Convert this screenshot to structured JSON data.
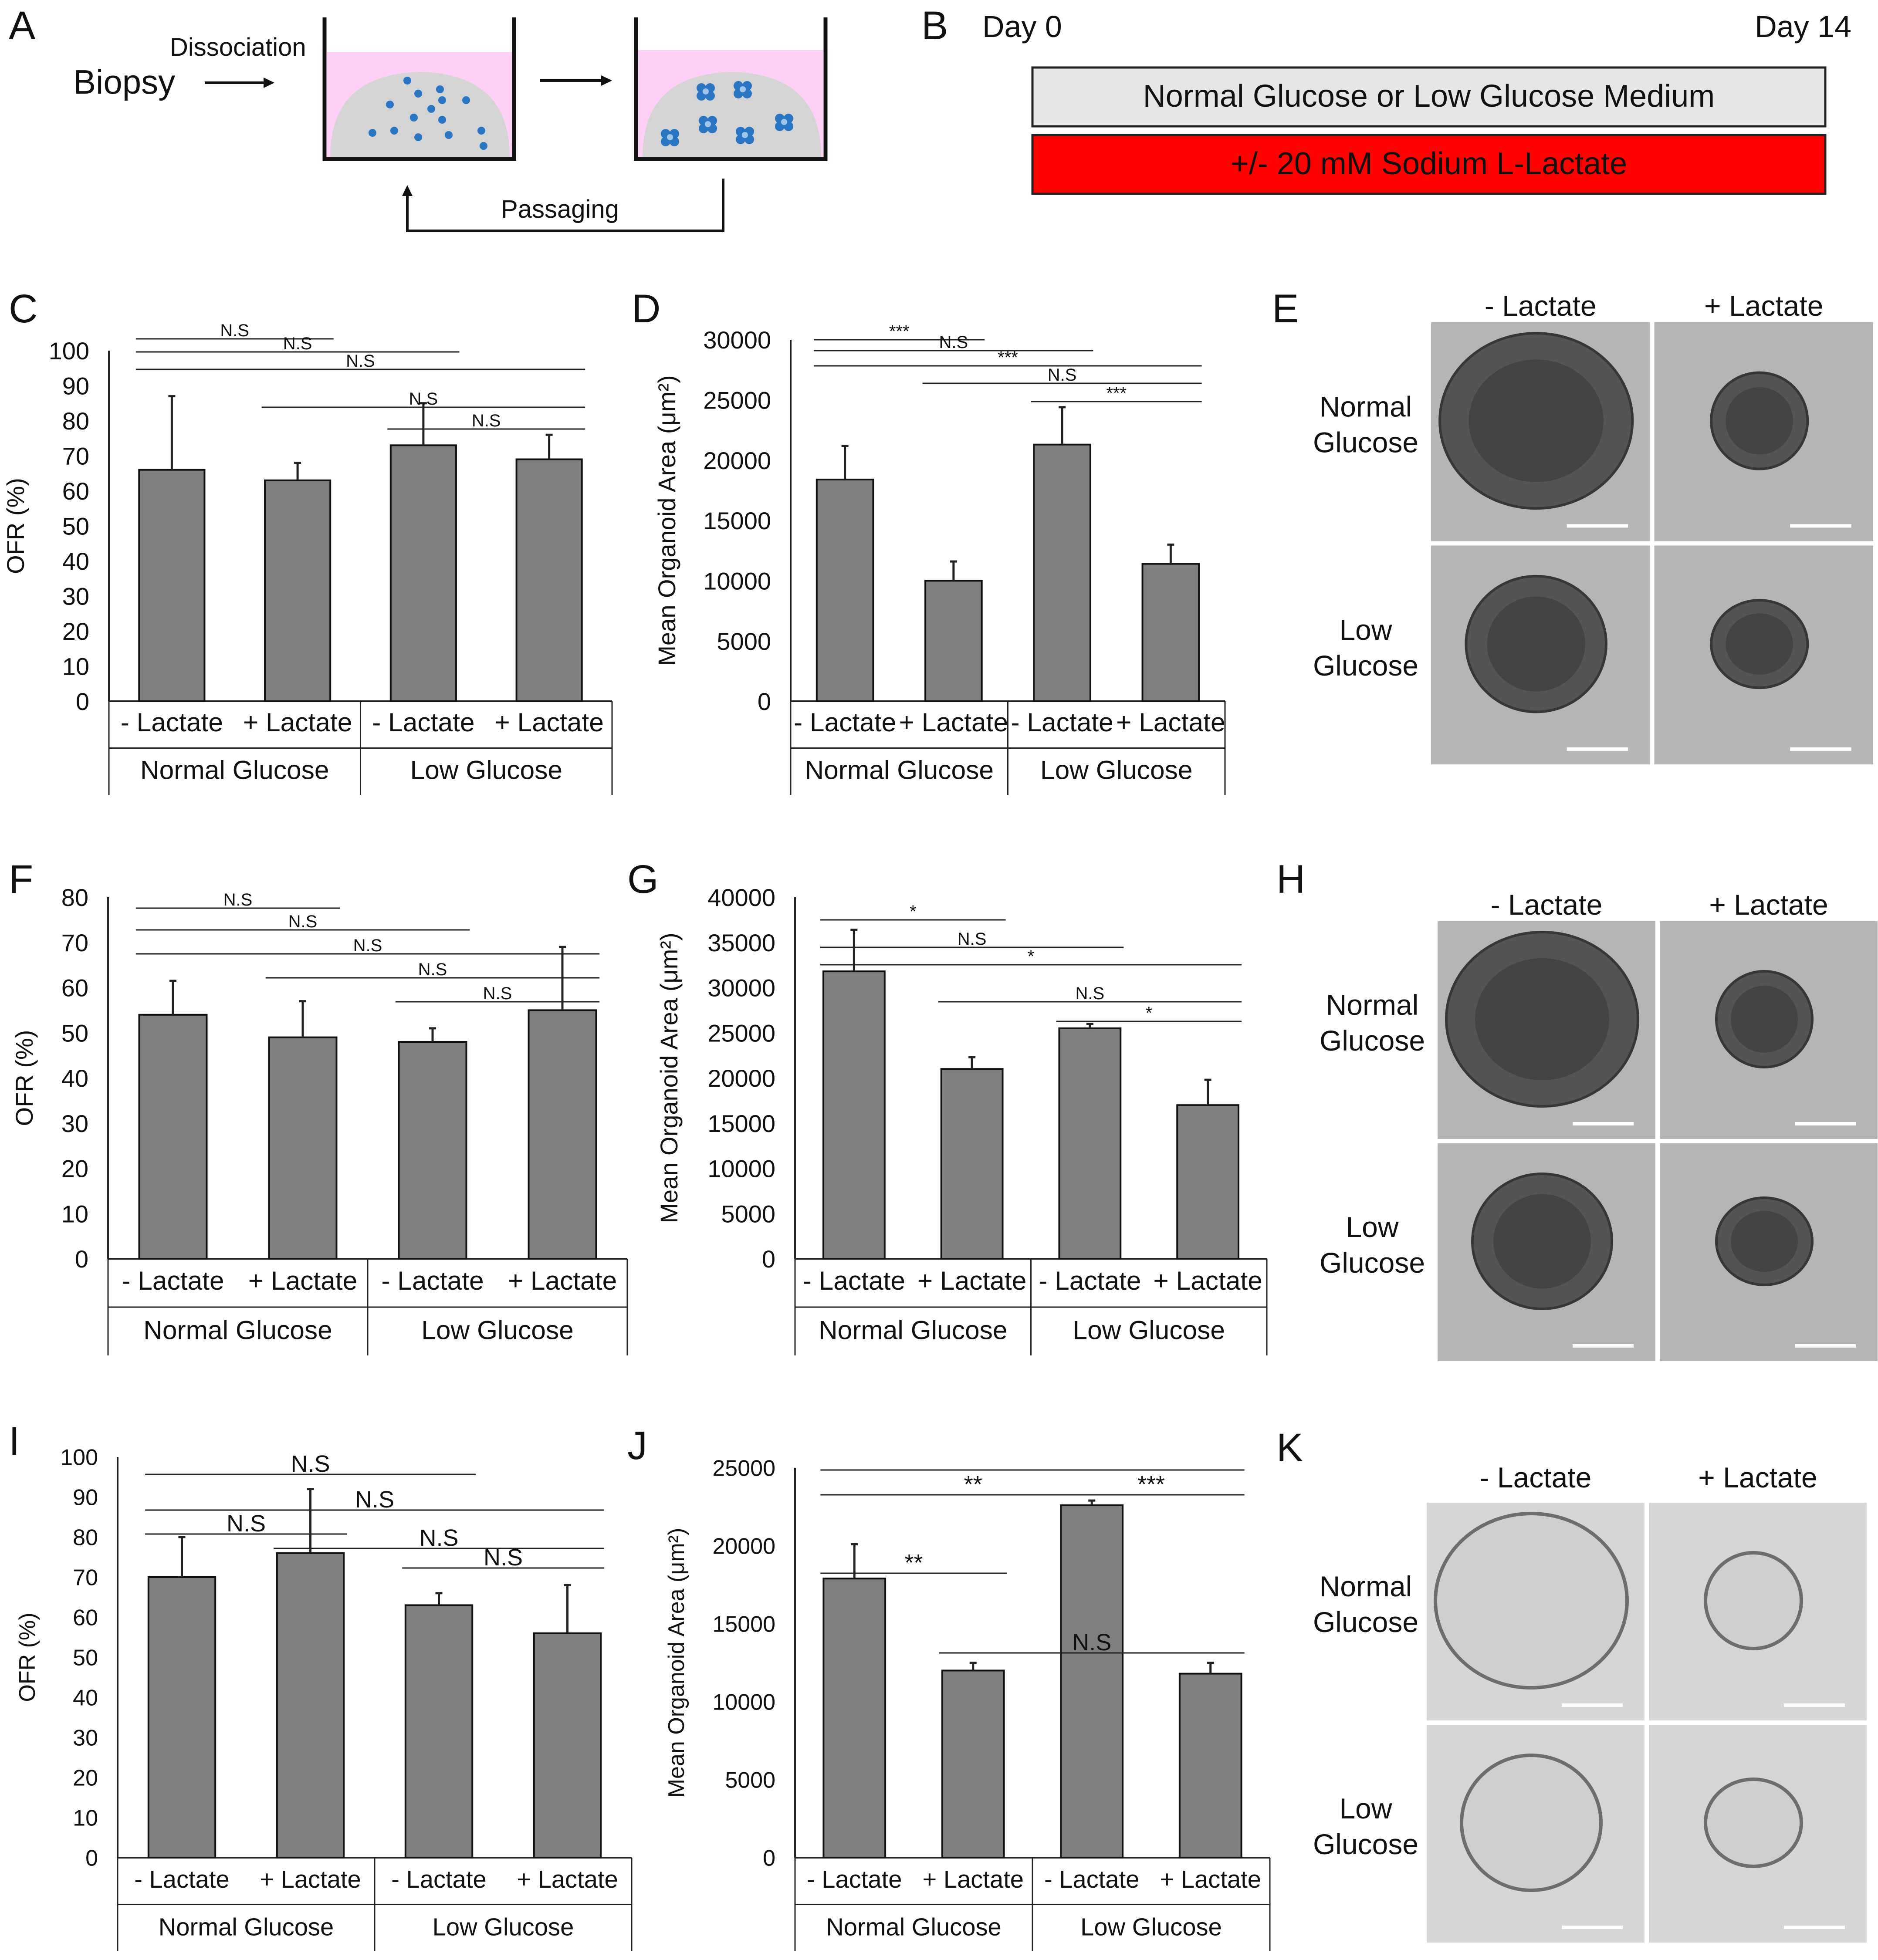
{
  "panel_letters": [
    "A",
    "B",
    "C",
    "D",
    "E",
    "F",
    "G",
    "H",
    "I",
    "J",
    "K"
  ],
  "panel_a": {
    "biopsy": "Biopsy",
    "dissociation": "Dissociation",
    "passaging": "Passaging"
  },
  "panel_b": {
    "day_start": "Day 0",
    "day_end": "Day 14",
    "medium_label": "Normal Glucose or Low Glucose Medium",
    "lactate_label": "+/- 20 mM Sodium L-Lactate",
    "colors": {
      "medium": "#e6e6e6",
      "lactate": "#ff0000"
    }
  },
  "images": {
    "col_labels": [
      "- Lactate",
      "+ Lactate"
    ],
    "row_normal": [
      "Normal",
      "Glucose"
    ],
    "row_low": [
      "Low",
      "Glucose"
    ]
  },
  "colors": {
    "bar": "#7f7f7f",
    "bar_stroke": "#111111"
  },
  "chart_data": [
    {
      "panel": "C",
      "type": "bar",
      "xlabel": "",
      "ylabel": "OFR (%)",
      "ylim": [
        0,
        100
      ],
      "ytick_step": 10,
      "categories": [
        "- Lactate",
        "+ Lactate",
        "- Lactate",
        "+ Lactate"
      ],
      "groups": [
        "Normal Glucose",
        "Low Glucose"
      ],
      "values": [
        66,
        63,
        73,
        69
      ],
      "errors": [
        21,
        5,
        12,
        7
      ],
      "brackets": [
        {
          "from": 0,
          "to": 1,
          "label": "N.S"
        },
        {
          "from": 0,
          "to": 2,
          "label": "N.S"
        },
        {
          "from": 0,
          "to": 3,
          "label": "N.S"
        },
        {
          "from": 1,
          "to": 3,
          "label": "N.S"
        },
        {
          "from": 2,
          "to": 3,
          "label": "N.S"
        }
      ]
    },
    {
      "panel": "D",
      "type": "bar",
      "xlabel": "",
      "ylabel": "Mean Organoid Area (μm²)",
      "ylim": [
        0,
        30000
      ],
      "ytick_step": 5000,
      "categories": [
        "- Lactate",
        "+ Lactate",
        "- Lactate",
        "+ Lactate"
      ],
      "groups": [
        "Normal Glucose",
        "Low Glucose"
      ],
      "values": [
        18400,
        10000,
        21300,
        11400
      ],
      "errors": [
        2800,
        1600,
        3100,
        1600
      ],
      "brackets": [
        {
          "from": 0,
          "to": 1,
          "label": "***"
        },
        {
          "from": 0,
          "to": 2,
          "label": "N.S"
        },
        {
          "from": 0,
          "to": 3,
          "label": "***"
        },
        {
          "from": 1,
          "to": 3,
          "label": "N.S"
        },
        {
          "from": 2,
          "to": 3,
          "label": "***"
        }
      ]
    },
    {
      "panel": "F",
      "type": "bar",
      "xlabel": "",
      "ylabel": "OFR (%)",
      "ylim": [
        0,
        80
      ],
      "ytick_step": 10,
      "categories": [
        "- Lactate",
        "+ Lactate",
        "- Lactate",
        "+ Lactate"
      ],
      "groups": [
        "Normal Glucose",
        "Low Glucose"
      ],
      "values": [
        54,
        49,
        48,
        55
      ],
      "errors": [
        7.5,
        8,
        3,
        14
      ],
      "brackets": [
        {
          "from": 0,
          "to": 1,
          "label": "N.S"
        },
        {
          "from": 0,
          "to": 2,
          "label": "N.S"
        },
        {
          "from": 0,
          "to": 3,
          "label": "N.S"
        },
        {
          "from": 1,
          "to": 3,
          "label": "N.S"
        },
        {
          "from": 2,
          "to": 3,
          "label": "N.S"
        }
      ]
    },
    {
      "panel": "G",
      "type": "bar",
      "xlabel": "",
      "ylabel": "Mean Organoid Area (μm²)",
      "ylim": [
        0,
        40000
      ],
      "ytick_step": 5000,
      "categories": [
        "- Lactate",
        "+ Lactate",
        "- Lactate",
        "+ Lactate"
      ],
      "groups": [
        "Normal Glucose",
        "Low Glucose"
      ],
      "values": [
        31800,
        21000,
        25500,
        17000
      ],
      "errors": [
        4600,
        1300,
        500,
        2800
      ],
      "brackets": [
        {
          "from": 0,
          "to": 1,
          "label": "*"
        },
        {
          "from": 0,
          "to": 2,
          "label": "N.S"
        },
        {
          "from": 0,
          "to": 3,
          "label": "*"
        },
        {
          "from": 1,
          "to": 3,
          "label": "N.S"
        },
        {
          "from": 2,
          "to": 3,
          "label": "*"
        }
      ]
    },
    {
      "panel": "I",
      "type": "bar",
      "xlabel": "",
      "ylabel": "OFR (%)",
      "ylim": [
        0,
        100
      ],
      "ytick_step": 10,
      "categories": [
        "- Lactate",
        "+ Lactate",
        "- Lactate",
        "+ Lactate"
      ],
      "groups": [
        "Normal Glucose",
        "Low Glucose"
      ],
      "values": [
        70,
        76,
        63,
        56
      ],
      "errors": [
        10,
        16,
        3,
        12
      ],
      "brackets": [
        {
          "from": 0,
          "to": 2,
          "label": "N.S"
        },
        {
          "from": 0,
          "to": 3,
          "label": "N.S"
        },
        {
          "from": 0,
          "to": 1,
          "label": "N.S"
        },
        {
          "from": 1,
          "to": 3,
          "label": "N.S"
        },
        {
          "from": 2,
          "to": 3,
          "label": "N.S"
        }
      ]
    },
    {
      "panel": "J",
      "type": "bar",
      "xlabel": "",
      "ylabel": "Mean Organoid Area (μm²)",
      "ylim": [
        0,
        25000
      ],
      "ytick_step": 5000,
      "categories": [
        "- Lactate",
        "+ Lactate",
        "- Lactate",
        "+ Lactate"
      ],
      "groups": [
        "Normal Glucose",
        "Low Glucose"
      ],
      "values": [
        17900,
        12000,
        22600,
        11800
      ],
      "errors": [
        2200,
        500,
        300,
        700
      ],
      "brackets": [
        {
          "from": 0,
          "to": 3,
          "label": ""
        },
        {
          "from": 0,
          "to": 2,
          "label": "**"
        },
        {
          "from": 2,
          "to": 3,
          "label": "***"
        },
        {
          "from": 0,
          "to": 1,
          "label": "**"
        },
        {
          "from": 1,
          "to": 3,
          "label": "N.S"
        }
      ]
    }
  ]
}
